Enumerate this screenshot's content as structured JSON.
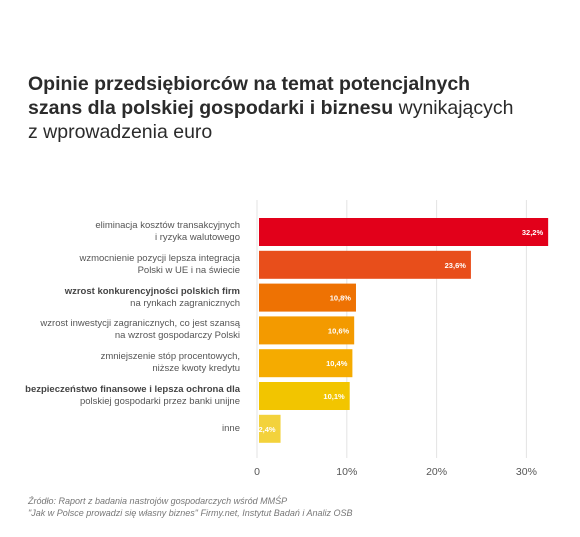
{
  "title": {
    "line1": "Opinie przedsiębiorców na temat potencjalnych",
    "line2_bold": "szans dla polskiej gospodarki i biznesu",
    "line2_rest": "wynikających",
    "line3": "z wprowadzenia euro"
  },
  "chart_data": {
    "type": "bar",
    "orientation": "horizontal",
    "categories": [
      {
        "lines": [
          {
            "text": "eliminacja kosztów transakcyjnych",
            "bold": false
          },
          {
            "text": "i ryzyka walutowego",
            "bold": false
          }
        ]
      },
      {
        "lines": [
          {
            "text": "wzmocnienie pozycji lepsza integracja",
            "bold": false
          },
          {
            "text": "Polski w UE i na świecie",
            "bold": false
          }
        ]
      },
      {
        "lines": [
          {
            "text": "wzrost konkurencyjności polskich firm",
            "bold": true
          },
          {
            "text": "na rynkach zagranicznych",
            "bold": false
          }
        ]
      },
      {
        "lines": [
          {
            "text": "wzrost inwestycji zagranicznych, co jest szansą",
            "bold": false
          },
          {
            "text": "na wzrost gospodarczy Polski",
            "bold": false
          }
        ]
      },
      {
        "lines": [
          {
            "text": "zmniejszenie stóp procentowych,",
            "bold": false
          },
          {
            "text": "niższe kwoty kredytu",
            "bold": false
          }
        ]
      },
      {
        "lines": [
          {
            "text": "bezpieczeństwo finansowe i lepsza ochrona dla",
            "bold": true
          },
          {
            "text": "polskiej gospodarki przez banki unijne",
            "bold": false
          }
        ]
      },
      {
        "lines": [
          {
            "text": "inne",
            "bold": false
          }
        ]
      }
    ],
    "values": [
      32.2,
      23.6,
      10.8,
      10.6,
      10.4,
      10.1,
      2.4
    ],
    "value_labels": [
      "32,2%",
      "23,6%",
      "10,8%",
      "10,6%",
      "10,4%",
      "10,1%",
      "2,4%"
    ],
    "colors": [
      "#e2001a",
      "#e84e1b",
      "#ee7203",
      "#f39a00",
      "#f5ab00",
      "#f2c500",
      "#f3d23c"
    ],
    "xlim": [
      0,
      35
    ],
    "xticks": [
      0,
      10,
      20,
      30
    ],
    "xtick_labels": [
      "0",
      "10%",
      "20%",
      "30%"
    ],
    "grid": true,
    "grid_color": "#e3e3e3"
  },
  "source": {
    "line1": "Źródło: Raport z badania nastrojów gospodarczych wśród MMŚP",
    "line2": "\"Jak w Polsce prowadzi się własny biznes\" Firmy.net, Instytut Badań i Analiz OSB"
  }
}
